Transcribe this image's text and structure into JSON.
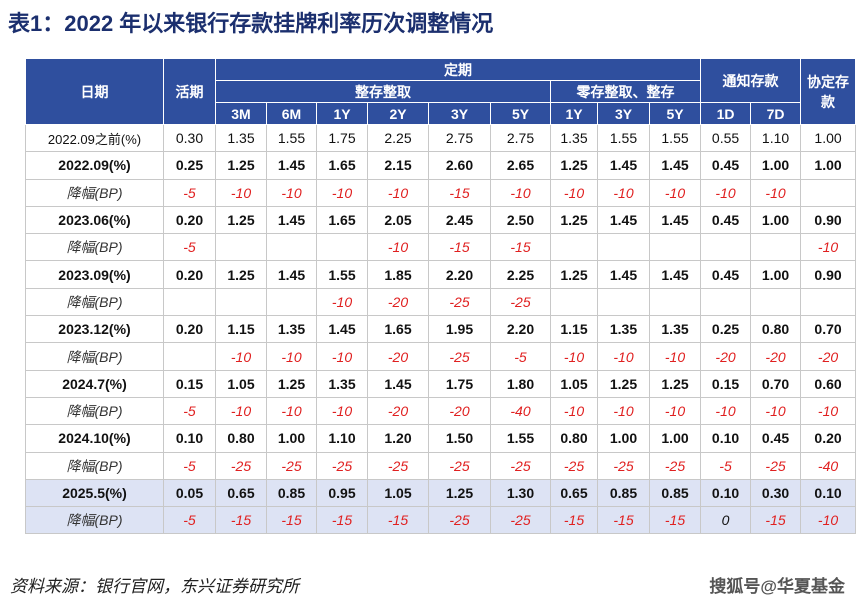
{
  "header": {
    "title": "表1：2022 年以来银行存款挂牌利率历次调整情况"
  },
  "table": {
    "head": {
      "date": "日期",
      "demand": "活期",
      "fixed": "定期",
      "lump": "整存整取",
      "installment": "零存整取、整存",
      "notice": "通知存款",
      "agreement": "协定存款",
      "terms": [
        "3M",
        "6M",
        "1Y",
        "2Y",
        "3Y",
        "5Y",
        "1Y",
        "3Y",
        "5Y",
        "1D",
        "7D"
      ]
    },
    "rows": [
      [
        "2022.09之前(%)",
        "0.30",
        "1.35",
        "1.55",
        "1.75",
        "2.25",
        "2.75",
        "2.75",
        "1.35",
        "1.55",
        "1.55",
        "0.55",
        "1.10",
        "1.00"
      ],
      [
        "2022.09(%)",
        "0.25",
        "1.25",
        "1.45",
        "1.65",
        "2.15",
        "2.60",
        "2.65",
        "1.25",
        "1.45",
        "1.45",
        "0.45",
        "1.00",
        "1.00"
      ],
      [
        "降幅(BP)",
        "-5",
        "-10",
        "-10",
        "-10",
        "-10",
        "-15",
        "-10",
        "-10",
        "-10",
        "-10",
        "-10",
        "-10",
        null
      ],
      [
        "2023.06(%)",
        "0.20",
        "1.25",
        "1.45",
        "1.65",
        "2.05",
        "2.45",
        "2.50",
        "1.25",
        "1.45",
        "1.45",
        "0.45",
        "1.00",
        "0.90"
      ],
      [
        "降幅(BP)",
        "-5",
        null,
        null,
        null,
        "-10",
        "-15",
        "-15",
        null,
        null,
        null,
        null,
        null,
        "-10"
      ],
      [
        "2023.09(%)",
        "0.20",
        "1.25",
        "1.45",
        "1.55",
        "1.85",
        "2.20",
        "2.25",
        "1.25",
        "1.45",
        "1.45",
        "0.45",
        "1.00",
        "0.90"
      ],
      [
        "降幅(BP)",
        null,
        null,
        null,
        "-10",
        "-20",
        "-25",
        "-25",
        null,
        null,
        null,
        null,
        null,
        null
      ],
      [
        "2023.12(%)",
        "0.20",
        "1.15",
        "1.35",
        "1.45",
        "1.65",
        "1.95",
        "2.20",
        "1.15",
        "1.35",
        "1.35",
        "0.25",
        "0.80",
        "0.70"
      ],
      [
        "降幅(BP)",
        null,
        "-10",
        "-10",
        "-10",
        "-20",
        "-25",
        "-5",
        "-10",
        "-10",
        "-10",
        "-20",
        "-20",
        "-20"
      ],
      [
        "2024.7(%)",
        "0.15",
        "1.05",
        "1.25",
        "1.35",
        "1.45",
        "1.75",
        "1.80",
        "1.05",
        "1.25",
        "1.25",
        "0.15",
        "0.70",
        "0.60"
      ],
      [
        "降幅(BP)",
        "-5",
        "-10",
        "-10",
        "-10",
        "-20",
        "-20",
        "-40",
        "-10",
        "-10",
        "-10",
        "-10",
        "-10",
        "-10"
      ],
      [
        "2024.10(%)",
        "0.10",
        "0.80",
        "1.00",
        "1.10",
        "1.20",
        "1.50",
        "1.55",
        "0.80",
        "1.00",
        "1.00",
        "0.10",
        "0.45",
        "0.20"
      ],
      [
        "降幅(BP)",
        "-5",
        "-25",
        "-25",
        "-25",
        "-25",
        "-25",
        "-25",
        "-25",
        "-25",
        "-25",
        "-5",
        "-25",
        "-40"
      ],
      [
        "2025.5(%)",
        "0.05",
        "0.65",
        "0.85",
        "0.95",
        "1.05",
        "1.25",
        "1.30",
        "0.65",
        "0.85",
        "0.85",
        "0.10",
        "0.30",
        "0.10"
      ],
      [
        "降幅(BP)",
        "-5",
        "-15",
        "-15",
        "-15",
        "-15",
        "-25",
        "-25",
        "-15",
        "-15",
        "-15",
        "0",
        "-15",
        "-10"
      ]
    ]
  },
  "footer": {
    "source": "资料来源：银行官网，东兴证券研究所",
    "watermark": "搜狐号@华夏基金"
  }
}
